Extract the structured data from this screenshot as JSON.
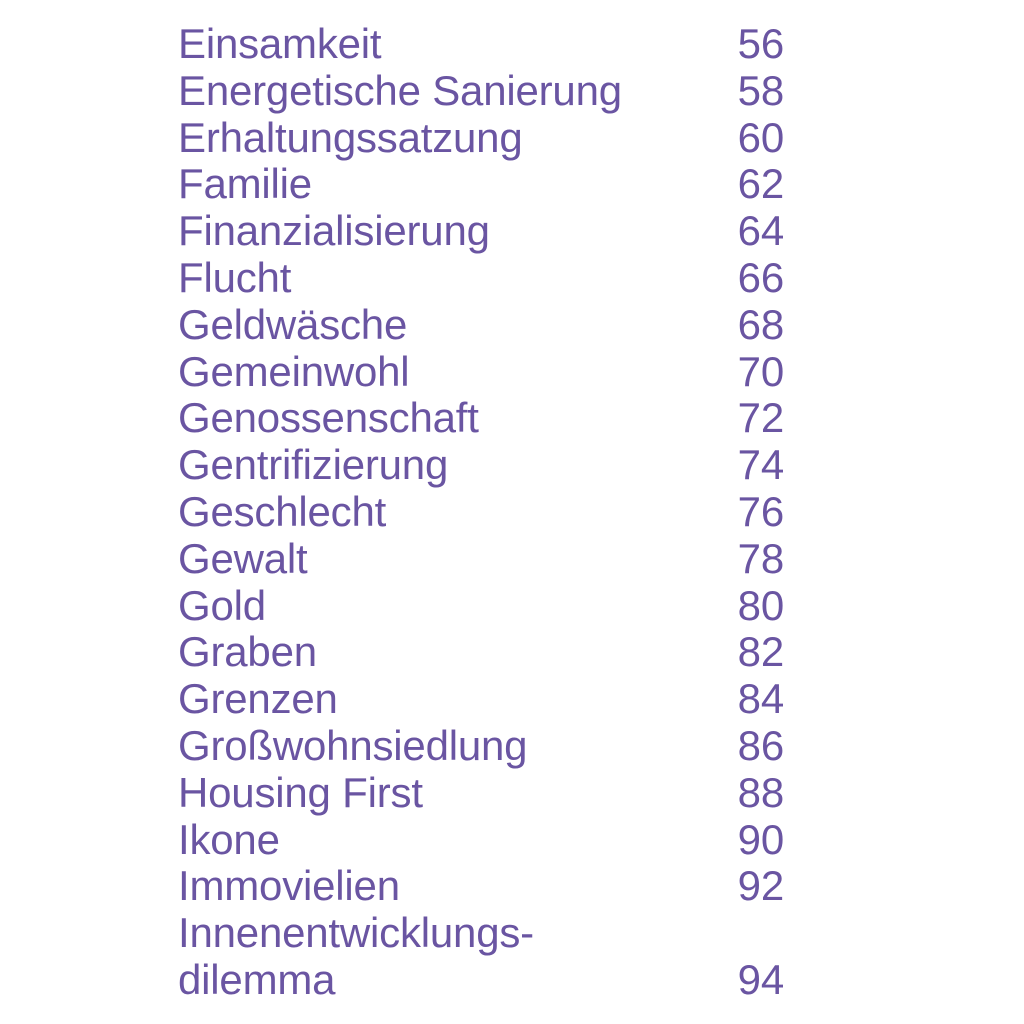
{
  "index": {
    "text_color": "#6a55a2",
    "entries": [
      {
        "term": "Einsamkeit",
        "page": "56"
      },
      {
        "term": "Energetische Sanierung",
        "page": "58"
      },
      {
        "term": "Erhaltungssatzung",
        "page": "60"
      },
      {
        "term": "Familie",
        "page": "62"
      },
      {
        "term": "Finanzialisierung",
        "page": "64"
      },
      {
        "term": "Flucht",
        "page": "66"
      },
      {
        "term": "Geldwäsche",
        "page": "68"
      },
      {
        "term": "Gemeinwohl",
        "page": "70"
      },
      {
        "term": "Genossenschaft",
        "page": "72"
      },
      {
        "term": "Gentrifizierung",
        "page": "74"
      },
      {
        "term": "Geschlecht",
        "page": "76"
      },
      {
        "term": "Gewalt",
        "page": "78"
      },
      {
        "term": "Gold",
        "page": "80"
      },
      {
        "term": "Graben",
        "page": "82"
      },
      {
        "term": "Grenzen",
        "page": "84"
      },
      {
        "term": "Großwohnsiedlung",
        "page": "86"
      },
      {
        "term": "Housing First",
        "page": "88"
      },
      {
        "term": "Ikone",
        "page": "90"
      },
      {
        "term": "Immovielien",
        "page": "92"
      },
      {
        "term": "Innenentwicklungs-",
        "term_cont": "dilemma",
        "page": "94"
      }
    ]
  }
}
